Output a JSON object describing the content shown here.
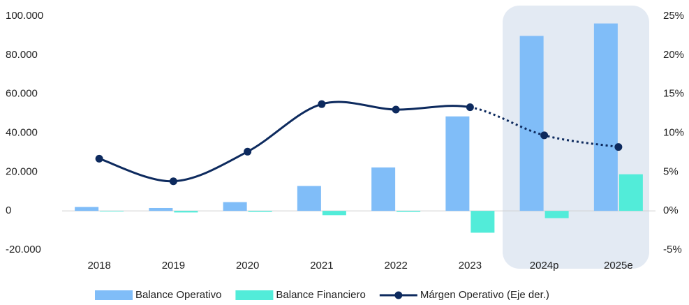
{
  "chart_data": {
    "type": "bar-line",
    "categories": [
      "2018",
      "2019",
      "2020",
      "2021",
      "2022",
      "2023",
      "2024p",
      "2025e"
    ],
    "series": [
      {
        "name": "Balance Operativo",
        "type": "bar",
        "color": "#80bdf8",
        "values": [
          2000,
          1500,
          4500,
          12800,
          22300,
          48500,
          89800,
          96200
        ]
      },
      {
        "name": "Balance Financiero",
        "type": "bar",
        "color": "#52ecd9",
        "values": [
          -300,
          -800,
          -500,
          -2200,
          -500,
          -11200,
          -3700,
          18800
        ]
      },
      {
        "name": "Márgen Operativo (Eje der.)",
        "type": "line",
        "axis": "y2",
        "color": "#0d2a5e",
        "values": [
          6.7,
          3.8,
          7.6,
          13.7,
          13.0,
          13.3,
          9.7,
          8.2
        ]
      }
    ],
    "ylim": [
      -20000,
      100000
    ],
    "yticks": [
      {
        "value": -20000,
        "label": "-20.000"
      },
      0,
      {
        "value": 20000,
        "label": "20.000"
      },
      {
        "value": 40000,
        "label": "40.000"
      },
      {
        "value": 60000,
        "label": "60.000"
      },
      {
        "value": 80000,
        "label": "80.000"
      },
      {
        "value": 100000,
        "label": "100.000"
      }
    ],
    "y2lim": [
      -5,
      25
    ],
    "y2ticks": [
      {
        "value": -5,
        "label": "-5%"
      },
      {
        "value": 0,
        "label": "0%"
      },
      {
        "value": 5,
        "label": "5%"
      },
      {
        "value": 10,
        "label": "10%"
      },
      {
        "value": 15,
        "label": "15%"
      },
      {
        "value": 20,
        "label": "20%"
      },
      {
        "value": 25,
        "label": "25%"
      }
    ],
    "grid": false
  }
}
